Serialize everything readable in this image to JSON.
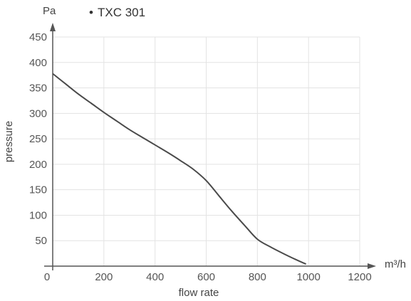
{
  "chart_data": {
    "type": "line",
    "title": "TXC 301",
    "title_marker": "•",
    "xlabel": "flow rate",
    "ylabel": "pressure",
    "xunit": "m³/h",
    "yunit": "Pa",
    "xlim": [
      0,
      1200
    ],
    "ylim": [
      0,
      450
    ],
    "xticks": [
      "0",
      "200",
      "400",
      "600",
      "800",
      "1000",
      "1200"
    ],
    "yticks": [
      "50",
      "100",
      "150",
      "200",
      "250",
      "300",
      "350",
      "400",
      "450"
    ],
    "grid": true,
    "line_color": "#4a4a4a",
    "series": [
      {
        "points": [
          [
            0,
            378
          ],
          [
            50,
            358
          ],
          [
            100,
            338
          ],
          [
            150,
            320
          ],
          [
            200,
            302
          ],
          [
            250,
            285
          ],
          [
            300,
            268
          ],
          [
            350,
            253
          ],
          [
            400,
            238
          ],
          [
            450,
            223
          ],
          [
            500,
            207
          ],
          [
            550,
            190
          ],
          [
            600,
            168
          ],
          [
            650,
            138
          ],
          [
            700,
            108
          ],
          [
            750,
            80
          ],
          [
            800,
            53
          ],
          [
            850,
            38
          ],
          [
            900,
            25
          ],
          [
            950,
            13
          ],
          [
            990,
            4
          ]
        ]
      }
    ]
  }
}
